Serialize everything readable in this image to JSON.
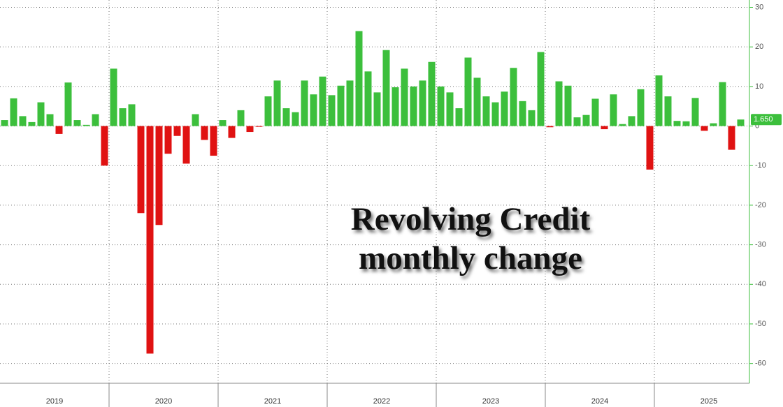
{
  "chart_data": {
    "type": "bar",
    "title": "Revolving Credit monthly change",
    "x": [
      "2019",
      "2019",
      "2019",
      "2019",
      "2019",
      "2019",
      "2019",
      "2019",
      "2019",
      "2019",
      "2019",
      "2019",
      "2020",
      "2020",
      "2020",
      "2020",
      "2020",
      "2020",
      "2020",
      "2020",
      "2020",
      "2020",
      "2020",
      "2020",
      "2021",
      "2021",
      "2021",
      "2021",
      "2021",
      "2021",
      "2021",
      "2021",
      "2021",
      "2021",
      "2021",
      "2021",
      "2022",
      "2022",
      "2022",
      "2022",
      "2022",
      "2022",
      "2022",
      "2022",
      "2022",
      "2022",
      "2022",
      "2022",
      "2023",
      "2023",
      "2023",
      "2023",
      "2023",
      "2023",
      "2023",
      "2023",
      "2023",
      "2023",
      "2023",
      "2023",
      "2024",
      "2024",
      "2024",
      "2024",
      "2024",
      "2024",
      "2024",
      "2024",
      "2024",
      "2024",
      "2024",
      "2024",
      "2025",
      "2025",
      "2025",
      "2025",
      "2025",
      "2025",
      "2025",
      "2025",
      "2025",
      "2025"
    ],
    "values": [
      1.5,
      7,
      2.5,
      1,
      6,
      3,
      -2,
      11,
      1.5,
      0.3,
      3,
      -10,
      14.5,
      4.5,
      5.5,
      -22,
      -57.5,
      -25,
      -7,
      -2.5,
      -9.5,
      3,
      -3.5,
      -7.5,
      1.5,
      -3,
      4,
      -1.5,
      -0.2,
      7.5,
      11.5,
      4.5,
      3.5,
      11.5,
      8,
      12.5,
      7.8,
      10.2,
      11.5,
      24,
      13.8,
      8.5,
      19.2,
      9.8,
      14.5,
      10,
      11.5,
      16.2,
      10,
      8.5,
      4.5,
      17.3,
      12.2,
      7.5,
      6,
      8.7,
      14.7,
      6.3,
      4,
      18.7,
      -0.3,
      11.3,
      10.2,
      2.2,
      2.8,
      6.9,
      -0.8,
      8,
      0.5,
      2.5,
      9.3,
      -11,
      12.8,
      7.5,
      1.3,
      1.2,
      7.1,
      -1.2,
      0.7,
      11.1,
      -6,
      1.65
    ],
    "value_labels": [
      null,
      null,
      null,
      null,
      null,
      null,
      null,
      null,
      null,
      null,
      null,
      null,
      null,
      null,
      null,
      null,
      null,
      null,
      null,
      null,
      null,
      null,
      null,
      null,
      null,
      null,
      null,
      null,
      null,
      null,
      null,
      null,
      null,
      null,
      null,
      null,
      null,
      null,
      null,
      null,
      null,
      null,
      null,
      null,
      null,
      null,
      null,
      null,
      null,
      null,
      null,
      null,
      null,
      null,
      null,
      null,
      null,
      null,
      null,
      null,
      null,
      null,
      null,
      null,
      null,
      null,
      null,
      null,
      null,
      null,
      null,
      null,
      null,
      null,
      null,
      null,
      null,
      null,
      null,
      null,
      null,
      "1.650"
    ],
    "positive_color": "#3cbf3c",
    "negative_color": "#e01212",
    "ylim": [
      -65,
      31.5
    ],
    "yticks": [
      30,
      20,
      10,
      0,
      -10,
      -20,
      -30,
      -40,
      -50,
      -60
    ],
    "grid": true
  }
}
